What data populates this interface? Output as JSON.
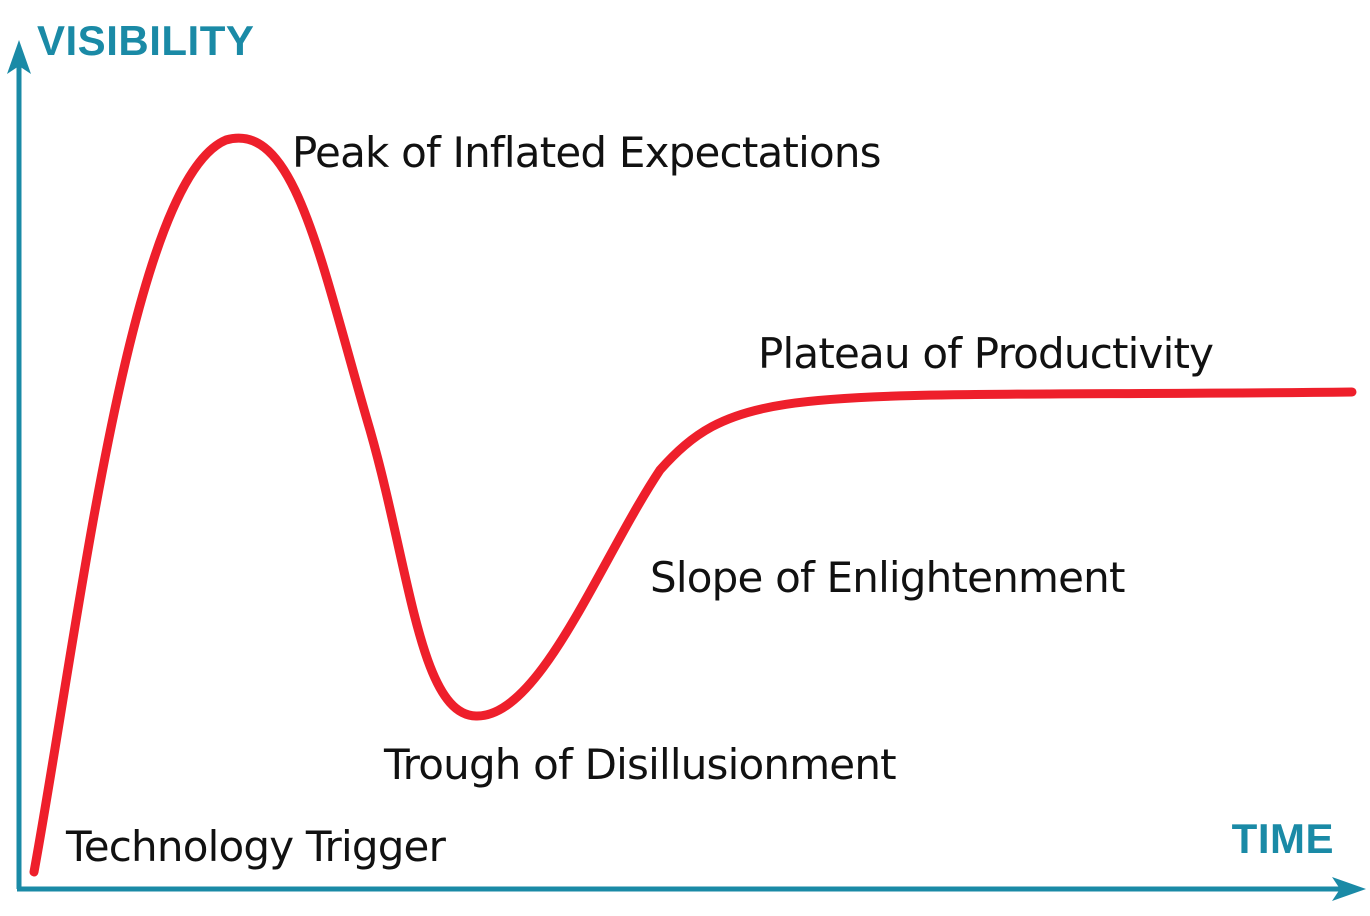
{
  "diagram": {
    "title": "",
    "y_axis_label": "VISIBILITY",
    "x_axis_label": "TIME",
    "phases": [
      {
        "label": "Technology Trigger"
      },
      {
        "label": "Peak of Inflated Expectations"
      },
      {
        "label": "Trough of Disillusionment"
      },
      {
        "label": "Slope of Enlightenment"
      },
      {
        "label": "Plateau of Productivity"
      }
    ],
    "colors": {
      "axis": "#1a8aa6",
      "curve": "#ee1f2b",
      "text": "#111111"
    }
  }
}
